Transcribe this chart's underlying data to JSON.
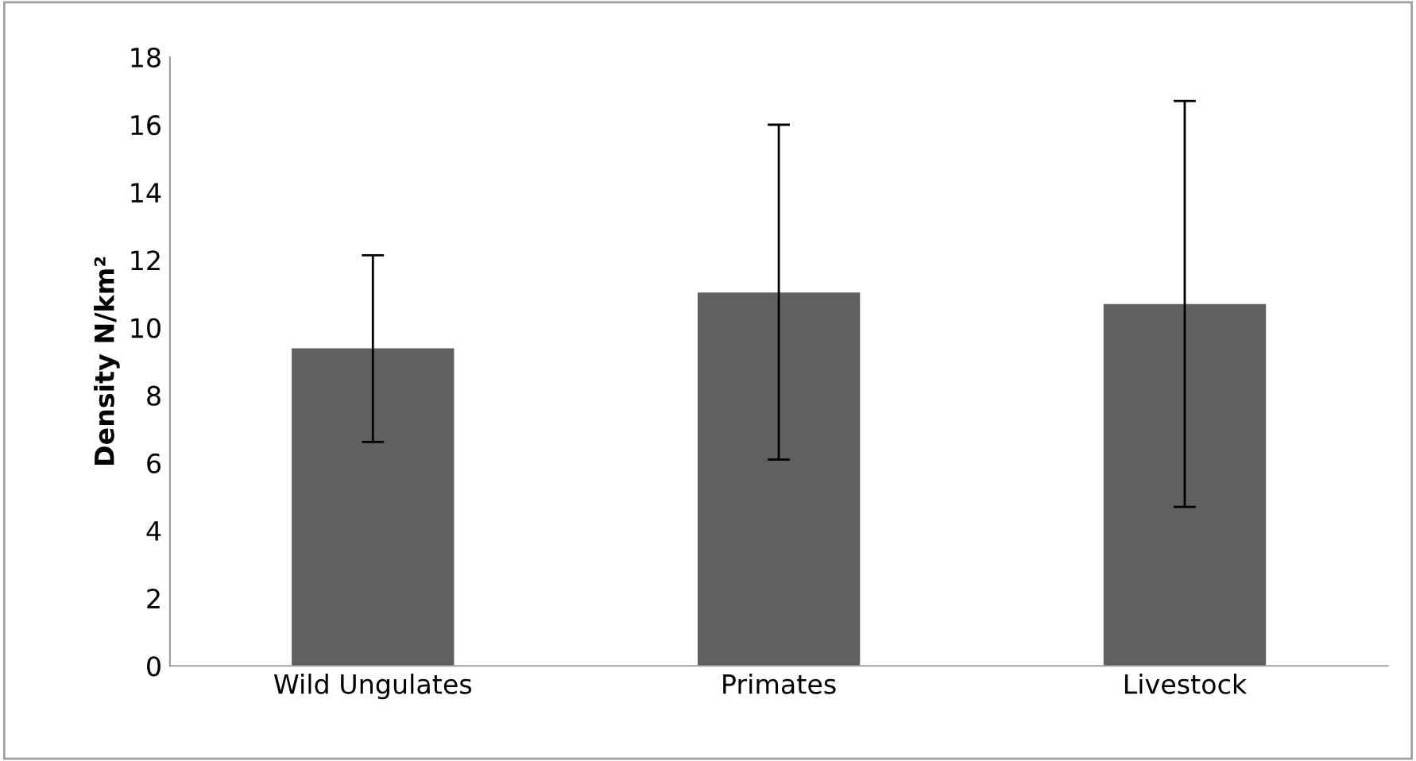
{
  "chart_data": {
    "type": "bar",
    "ylabel": "Density N/km²",
    "categories": [
      "Wild Ungulates",
      "Primates",
      "Livestock"
    ],
    "values": [
      9.39,
      11.04,
      10.7
    ],
    "errors": [
      [
        6.62,
        12.14
      ],
      [
        6.1,
        16.0
      ],
      [
        4.7,
        16.7
      ]
    ],
    "color": "#606060",
    "ylim": [
      0,
      18
    ],
    "yticks": [
      0,
      2,
      4,
      6,
      8,
      10,
      12,
      14,
      16,
      18
    ],
    "grid": false,
    "legend": false
  }
}
